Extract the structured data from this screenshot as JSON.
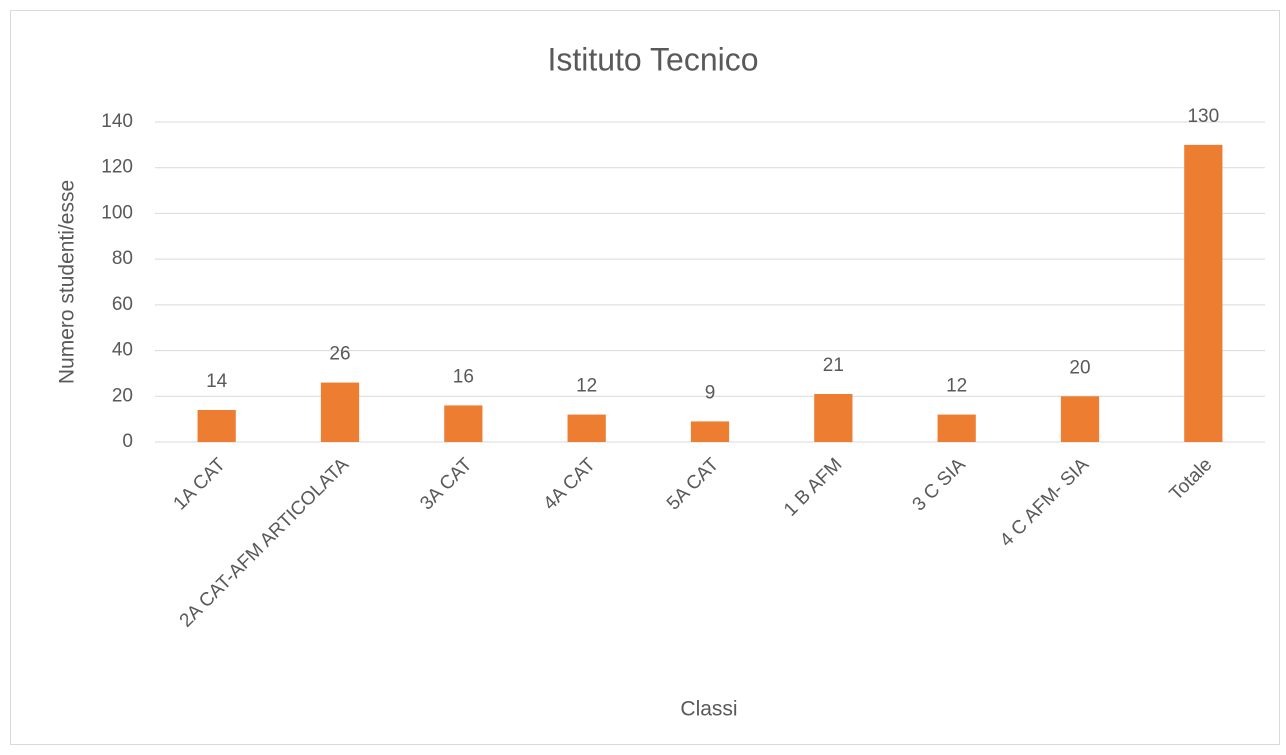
{
  "chart_data": {
    "type": "bar",
    "title": "Istituto Tecnico",
    "xlabel": "Classi",
    "ylabel": "Numero studenti/esse",
    "categories": [
      "1A CAT",
      "2A CAT-AFM ARTICOLATA",
      "3A CAT",
      "4A CAT",
      "5A CAT",
      "1 B AFM",
      "3 C SIA",
      "4 C AFM- SIA",
      "Totale"
    ],
    "values": [
      14,
      26,
      16,
      12,
      9,
      21,
      12,
      20,
      130
    ],
    "color": "#ed7d31",
    "ylim": [
      0,
      140
    ],
    "yticks": [
      0,
      20,
      40,
      60,
      80,
      100,
      120,
      140
    ],
    "grid": true
  }
}
